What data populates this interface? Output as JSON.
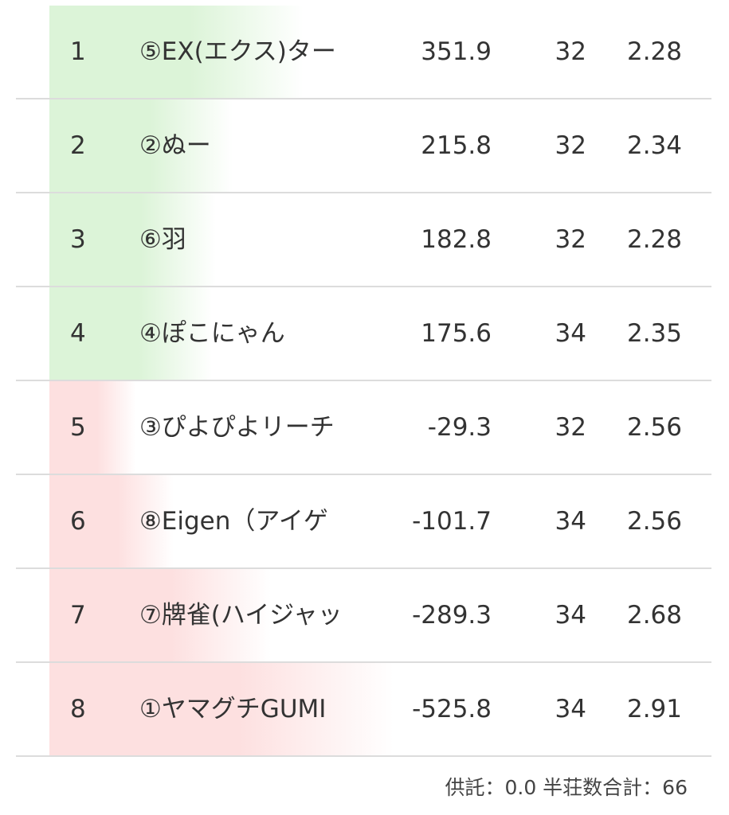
{
  "colors": {
    "positive": "#dcf4d8",
    "negative": "#fde0e0",
    "text": "#333333",
    "divider": "#dcdcdc"
  },
  "rows": [
    {
      "rank": "1",
      "name": "⑤EX(エクス)ター",
      "score": "351.9",
      "games": "32",
      "avg": "2.28",
      "value": 351.9
    },
    {
      "rank": "2",
      "name": "②ぬー",
      "score": "215.8",
      "games": "32",
      "avg": "2.34",
      "value": 215.8
    },
    {
      "rank": "3",
      "name": "⑥羽",
      "score": "182.8",
      "games": "32",
      "avg": "2.28",
      "value": 182.8
    },
    {
      "rank": "4",
      "name": "④ぽこにゃん",
      "score": "175.6",
      "games": "34",
      "avg": "2.35",
      "value": 175.6
    },
    {
      "rank": "5",
      "name": "③ぴよぴよリーチ",
      "score": "-29.3",
      "games": "32",
      "avg": "2.56",
      "value": -29.3
    },
    {
      "rank": "6",
      "name": "⑧Eigen（アイゲ",
      "score": "-101.7",
      "games": "34",
      "avg": "2.56",
      "value": -101.7
    },
    {
      "rank": "7",
      "name": "⑦牌雀(ハイジャッ",
      "score": "-289.3",
      "games": "34",
      "avg": "2.68",
      "value": -289.3
    },
    {
      "rank": "8",
      "name": "①ヤマグチGUMI",
      "score": "-525.8",
      "games": "34",
      "avg": "2.91",
      "value": -525.8
    }
  ],
  "footer": "供託：0.0 半荘数合計：66"
}
